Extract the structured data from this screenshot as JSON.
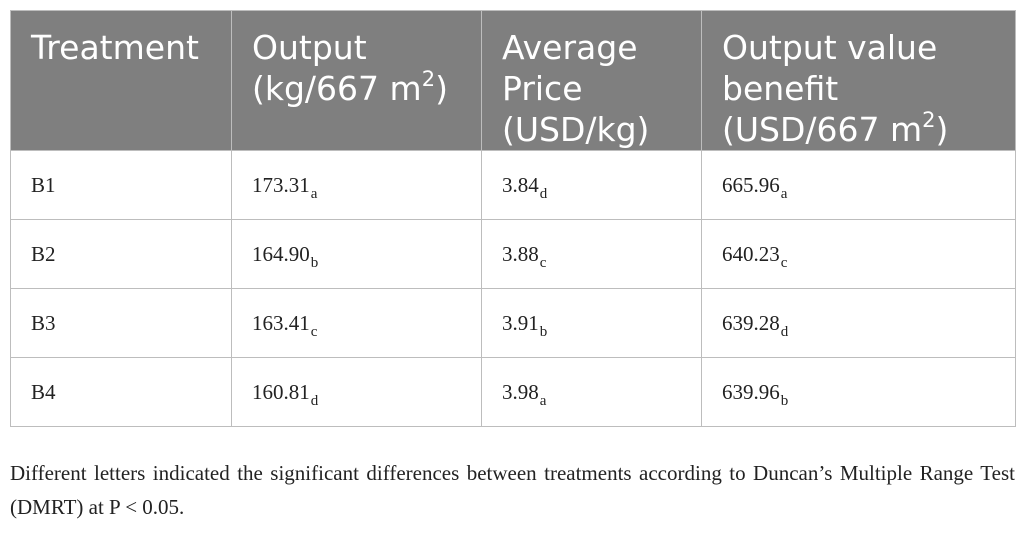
{
  "table": {
    "headers": [
      {
        "line1": "Treatment",
        "line2": "",
        "line3": "",
        "sup": "",
        "close": ""
      },
      {
        "line1": "Output",
        "line2": "(kg/667 m",
        "line3": "",
        "sup": "2",
        "close": ")"
      },
      {
        "line1": "Average",
        "line2": "Price",
        "line3": "(USD/kg)",
        "sup": "",
        "close": ""
      },
      {
        "line1": "Output value",
        "line2": "benefit",
        "line3": "(USD/667 m",
        "sup": "2",
        "close": ")"
      }
    ],
    "rows": [
      {
        "treatment": "B1",
        "output": "173.31",
        "output_sig": "a",
        "price": "3.84",
        "price_sig": "d",
        "benefit": "665.96",
        "benefit_sig": "a"
      },
      {
        "treatment": "B2",
        "output": "164.90",
        "output_sig": "b",
        "price": "3.88",
        "price_sig": "c",
        "benefit": "640.23",
        "benefit_sig": "c"
      },
      {
        "treatment": "B3",
        "output": "163.41",
        "output_sig": "c",
        "price": "3.91",
        "price_sig": "b",
        "benefit": "639.28",
        "benefit_sig": "d"
      },
      {
        "treatment": "B4",
        "output": "160.81",
        "output_sig": "d",
        "price": "3.98",
        "price_sig": "a",
        "benefit": "639.96",
        "benefit_sig": "b"
      }
    ]
  },
  "footnote": "Different letters indicated the significant differences between treatments according to Duncan’s Multiple Range Test (DMRT) at P < 0.05.",
  "colors": {
    "header_bg": "#7f7f7f",
    "header_text": "#ffffff",
    "border": "#bdbdbd",
    "body_text": "#222222"
  }
}
